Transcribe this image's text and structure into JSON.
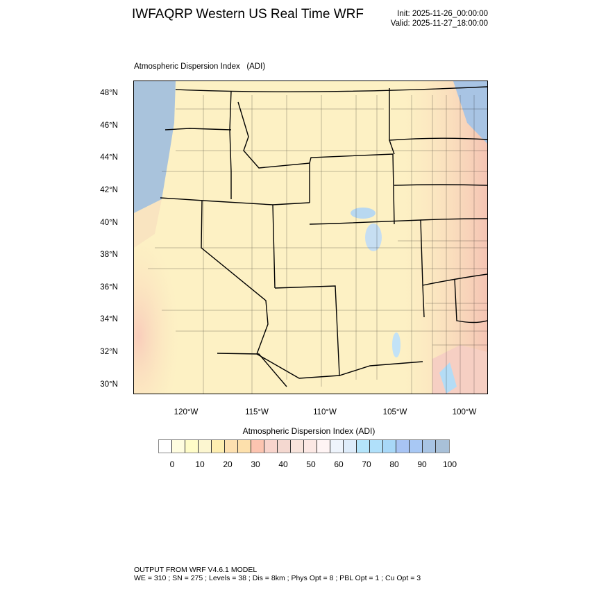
{
  "header": {
    "title": "IWFAQRP Western US Real Time WRF",
    "init": "Init: 2025-11-26_00:00:00",
    "valid": "Valid: 2025-11-27_18:00:00"
  },
  "map": {
    "subtitle": "Atmospheric Dispersion Index   (ADI)",
    "lat_labels": [
      "48°N",
      "46°N",
      "44°N",
      "42°N",
      "40°N",
      "38°N",
      "36°N",
      "34°N",
      "32°N",
      "30°N"
    ],
    "lon_labels": [
      "120°W",
      "115°W",
      "110°W",
      "105°W",
      "100°W"
    ]
  },
  "colorbar": {
    "title": "Atmospheric Dispersion Index  (ADI)",
    "labels": [
      "0",
      "10",
      "20",
      "30",
      "40",
      "50",
      "60",
      "70",
      "80",
      "90",
      "100"
    ],
    "colors": [
      "#ffffff",
      "#fffde0",
      "#fffcc8",
      "#fcf6d0",
      "#feeeb0",
      "#fde0b0",
      "#fde0ac",
      "#fcc4b0",
      "#f8d4cc",
      "#f4d8d0",
      "#f8e4dc",
      "#fce8e4",
      "#fff4f4",
      "#eef4fc",
      "#deecfa",
      "#b4e4fa",
      "#b0e0fa",
      "#a8d8f8",
      "#a8c4f4",
      "#a8c8f4",
      "#a8c4e4",
      "#a8c0d8"
    ]
  },
  "footer": {
    "line1": "OUTPUT FROM WRF V4.6.1 MODEL",
    "line2": "WE = 310 ; SN = 275 ; Levels = 38 ; Dis = 8km ; Phys Opt = 8 ; PBL Opt = 1 ; Cu Opt = 3"
  }
}
